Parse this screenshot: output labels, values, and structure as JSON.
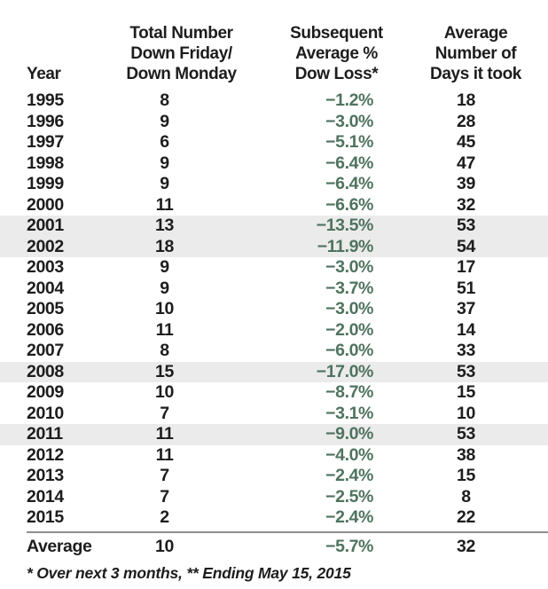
{
  "chart_data": {
    "type": "table",
    "title": "",
    "columns": [
      {
        "key": "year",
        "header_lines": [
          "Year"
        ]
      },
      {
        "key": "dfdm_count",
        "header_lines": [
          "Total Number",
          "Down Friday/",
          "Down Monday"
        ]
      },
      {
        "key": "dow_loss",
        "header_lines": [
          "Subsequent",
          "Average %",
          "Dow Loss*"
        ]
      },
      {
        "key": "days",
        "header_lines": [
          "Average",
          "Number of",
          "Days it took"
        ]
      }
    ],
    "rows": [
      {
        "year": "1995",
        "dfdm_count": "8",
        "dow_loss": "−1.2%",
        "days": "18",
        "highlight": false
      },
      {
        "year": "1996",
        "dfdm_count": "9",
        "dow_loss": "−3.0%",
        "days": "28",
        "highlight": false
      },
      {
        "year": "1997",
        "dfdm_count": "6",
        "dow_loss": "−5.1%",
        "days": "45",
        "highlight": false
      },
      {
        "year": "1998",
        "dfdm_count": "9",
        "dow_loss": "−6.4%",
        "days": "47",
        "highlight": false
      },
      {
        "year": "1999",
        "dfdm_count": "9",
        "dow_loss": "−6.4%",
        "days": "39",
        "highlight": false
      },
      {
        "year": "2000",
        "dfdm_count": "11",
        "dow_loss": "−6.6%",
        "days": "32",
        "highlight": false
      },
      {
        "year": "2001",
        "dfdm_count": "13",
        "dow_loss": "−13.5%",
        "days": "53",
        "highlight": true
      },
      {
        "year": "2002",
        "dfdm_count": "18",
        "dow_loss": "−11.9%",
        "days": "54",
        "highlight": true
      },
      {
        "year": "2003",
        "dfdm_count": "9",
        "dow_loss": "−3.0%",
        "days": "17",
        "highlight": false
      },
      {
        "year": "2004",
        "dfdm_count": "9",
        "dow_loss": "−3.7%",
        "days": "51",
        "highlight": false
      },
      {
        "year": "2005",
        "dfdm_count": "10",
        "dow_loss": "−3.0%",
        "days": "37",
        "highlight": false
      },
      {
        "year": "2006",
        "dfdm_count": "11",
        "dow_loss": "−2.0%",
        "days": "14",
        "highlight": false
      },
      {
        "year": "2007",
        "dfdm_count": "8",
        "dow_loss": "−6.0%",
        "days": "33",
        "highlight": false
      },
      {
        "year": "2008",
        "dfdm_count": "15",
        "dow_loss": "−17.0%",
        "days": "53",
        "highlight": true
      },
      {
        "year": "2009",
        "dfdm_count": "10",
        "dow_loss": "−8.7%",
        "days": "15",
        "highlight": false
      },
      {
        "year": "2010",
        "dfdm_count": "7",
        "dow_loss": "−3.1%",
        "days": "10",
        "highlight": false
      },
      {
        "year": "2011",
        "dfdm_count": "11",
        "dow_loss": "−9.0%",
        "days": "53",
        "highlight": true
      },
      {
        "year": "2012",
        "dfdm_count": "11",
        "dow_loss": "−4.0%",
        "days": "38",
        "highlight": false
      },
      {
        "year": "2013",
        "dfdm_count": "7",
        "dow_loss": "−2.4%",
        "days": "15",
        "highlight": false
      },
      {
        "year": "2014",
        "dfdm_count": "7",
        "dow_loss": "−2.5%",
        "days": "8",
        "highlight": false
      },
      {
        "year": "2015",
        "dfdm_count": "2",
        "dow_loss": "−2.4%",
        "days": "22",
        "highlight": false
      }
    ],
    "average_row": {
      "year": "Average",
      "dfdm_count": "10",
      "dow_loss": "−5.7%",
      "days": "32"
    },
    "highlighted_years": [
      "2001",
      "2002",
      "2008",
      "2011"
    ],
    "footnote": "* Over next 3 months, ** Ending May 15, 2015",
    "layout": {
      "grid": false,
      "legend": "none",
      "loss_column_align": "right",
      "count_columns_align": "center"
    },
    "colors": {
      "loss_text": "#4f735f",
      "row_highlight": "#ebebeb",
      "text": "#1d1d1d",
      "divider": "#8f8f8f"
    }
  }
}
